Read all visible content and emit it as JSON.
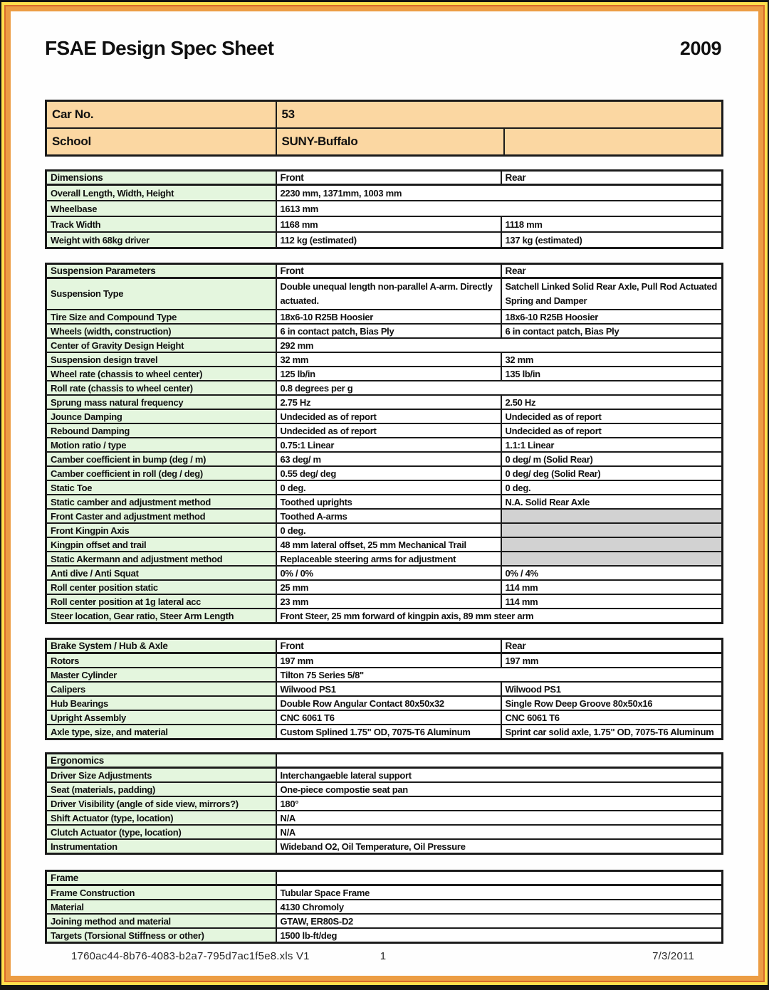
{
  "header": {
    "title": "FSAE Design Spec Sheet",
    "year": "2009"
  },
  "info": {
    "rows": [
      {
        "label": "Car No.",
        "value": "53"
      },
      {
        "label": "School",
        "value": "SUNY-Buffalo"
      }
    ]
  },
  "spec_tables": [
    {
      "id": "dimensions",
      "title": "Dimensions",
      "col_front": "Front",
      "col_rear": "Rear",
      "two_col": false,
      "row_class": "dim",
      "rows": [
        {
          "label": "Overall Length, Width, Height",
          "front": "2230 mm, 1371mm, 1003 mm",
          "span": true
        },
        {
          "label": "Wheelbase",
          "front": "1613 mm",
          "span": true
        },
        {
          "label": "Track Width",
          "front": "1168 mm",
          "rear": "1118 mm"
        },
        {
          "label": "Weight with 68kg driver",
          "front": "112 kg (estimated)",
          "rear": "137 kg (estimated)"
        }
      ]
    },
    {
      "id": "suspension",
      "title": "Suspension Parameters",
      "col_front": "Front",
      "col_rear": "Rear",
      "two_col": false,
      "row_class": "",
      "rows": [
        {
          "label": "Suspension Type",
          "front": "Double unequal length non-parallel A-arm.  Directly\nactuated.",
          "rear": "Satchell Linked Solid Rear Axle, Pull Rod Actuated\nSpring and Damper",
          "tall": true
        },
        {
          "label": "Tire Size and Compound Type",
          "front": "18x6-10 R25B Hoosier",
          "rear": "18x6-10 R25B Hoosier"
        },
        {
          "label": "Wheels (width, construction)",
          "front": "6 in contact patch, Bias Ply",
          "rear": "6 in contact patch, Bias Ply"
        },
        {
          "label": "Center of Gravity Design Height",
          "front": "292 mm",
          "span": true
        },
        {
          "label": "Suspension design travel",
          "front": "32 mm",
          "rear": "32 mm"
        },
        {
          "label": "Wheel rate (chassis to wheel center)",
          "front": "125 lb/in",
          "rear": "135 lb/in"
        },
        {
          "label": "Roll rate (chassis to wheel center)",
          "front": "0.8 degrees per g",
          "span": true
        },
        {
          "label": "Sprung mass natural frequency",
          "front": "2.75 Hz",
          "rear": "2.50 Hz"
        },
        {
          "label": "Jounce Damping",
          "front": "Undecided as of report",
          "rear": "Undecided as of report"
        },
        {
          "label": "Rebound Damping",
          "front": "Undecided as of report",
          "rear": "Undecided as of report"
        },
        {
          "label": "Motion ratio / type",
          "front": "0.75:1 Linear",
          "rear": "1.1:1 Linear"
        },
        {
          "label": "Camber coefficient in bump (deg / m)",
          "front": "63 deg/ m",
          "rear": "0 deg/ m (Solid Rear)"
        },
        {
          "label": "Camber coefficient in roll (deg / deg)",
          "front": "0.55 deg/ deg",
          "rear": "0 deg/ deg (Solid Rear)"
        },
        {
          "label": "Static Toe",
          "front": "0 deg.",
          "rear": "0 deg."
        },
        {
          "label": "Static camber and adjustment method",
          "front": "Toothed uprights",
          "rear": "N.A. Solid Rear Axle"
        },
        {
          "label": "Front Caster and adjustment method",
          "front": "Toothed A-arms",
          "rear": "",
          "gray": true
        },
        {
          "label": "Front Kingpin Axis",
          "front": "0 deg.",
          "rear": "",
          "gray": true
        },
        {
          "label": "Kingpin offset and trail",
          "front": "48 mm lateral offset, 25 mm Mechanical Trail",
          "rear": "",
          "gray": true
        },
        {
          "label": "Static Akermann and adjustment method",
          "front": "Replaceable steering arms for adjustment",
          "rear": "",
          "gray": true
        },
        {
          "label": "Anti dive / Anti Squat",
          "front": "0% / 0%",
          "rear": "0% / 4%"
        },
        {
          "label": "Roll center position static",
          "front": "25 mm",
          "rear": "114 mm"
        },
        {
          "label": "Roll center position at 1g lateral acc",
          "front": "23 mm",
          "rear": "114 mm"
        },
        {
          "label": "Steer location, Gear ratio, Steer Arm Length",
          "front": "Front Steer, 25 mm forward of kingpin axis, 89 mm steer arm",
          "span": true
        }
      ]
    },
    {
      "id": "brakes",
      "title": "Brake System / Hub & Axle",
      "col_front": "Front",
      "col_rear": "Rear",
      "two_col": false,
      "row_class": "",
      "rows": [
        {
          "label": "Rotors",
          "front": "197 mm",
          "rear": "197 mm"
        },
        {
          "label": "Master Cylinder",
          "front": "Tilton 75 Series 5/8\"",
          "span": true
        },
        {
          "label": "Calipers",
          "front": "Wilwood PS1",
          "rear": "Wilwood PS1"
        },
        {
          "label": "Hub Bearings",
          "front": "Double Row Angular Contact 80x50x32",
          "rear": "Single Row Deep Groove 80x50x16"
        },
        {
          "label": "Upright Assembly",
          "front": "CNC 6061 T6",
          "rear": "CNC 6061 T6"
        },
        {
          "label": "Axle type, size, and material",
          "front": "Custom Splined 1.75\" OD, 7075-T6 Aluminum",
          "rear": "Sprint car solid axle, 1.75\" OD, 7075-T6 Aluminum"
        }
      ]
    },
    {
      "id": "ergonomics",
      "title": "Ergonomics",
      "col_front": "",
      "col_rear": "",
      "two_col": true,
      "row_class": "",
      "rows": [
        {
          "label": "Driver Size Adjustments",
          "front": "Interchangaeble  lateral support",
          "span": true
        },
        {
          "label": "Seat (materials, padding)",
          "front": "One-piece compostie seat pan",
          "span": true
        },
        {
          "label": "Driver Visibility (angle of side view, mirrors?)",
          "front": "180°",
          "span": true
        },
        {
          "label": "Shift Actuator (type, location)",
          "front": "N/A",
          "span": true
        },
        {
          "label": "Clutch Actuator (type, location)",
          "front": "N/A",
          "span": true
        },
        {
          "label": "Instrumentation",
          "front": "Wideband O2, Oil Temperature, Oil Pressure",
          "span": true
        }
      ]
    },
    {
      "id": "frame",
      "title": "Frame",
      "col_front": "",
      "col_rear": "",
      "two_col": true,
      "row_class": "",
      "rows": [
        {
          "label": "Frame Construction",
          "front": "Tubular Space Frame",
          "span": true
        },
        {
          "label": "Material",
          "front": "4130 Chromoly",
          "span": true
        },
        {
          "label": "Joining method and material",
          "front": "GTAW, ER80S-D2",
          "span": true
        },
        {
          "label": "Targets (Torsional Stiffness or other)",
          "front": "1500 lb-ft/deg",
          "span": true
        }
      ]
    }
  ],
  "footer": {
    "filename": "1760ac44-8b76-4083-b2a7-795d7ac1f5e8.xls V1",
    "page_number": "1",
    "date": "7/3/2011"
  },
  "colors": {
    "frame_orange": "#ec9d44",
    "frame_yellow": "#ffdf4d",
    "frame_line": "#d96c2c",
    "info_tan": "#fbd7a2",
    "label_green": "#e4f6de",
    "disabled_gray": "#d2d2d2",
    "border_black": "#1b1b1b"
  }
}
